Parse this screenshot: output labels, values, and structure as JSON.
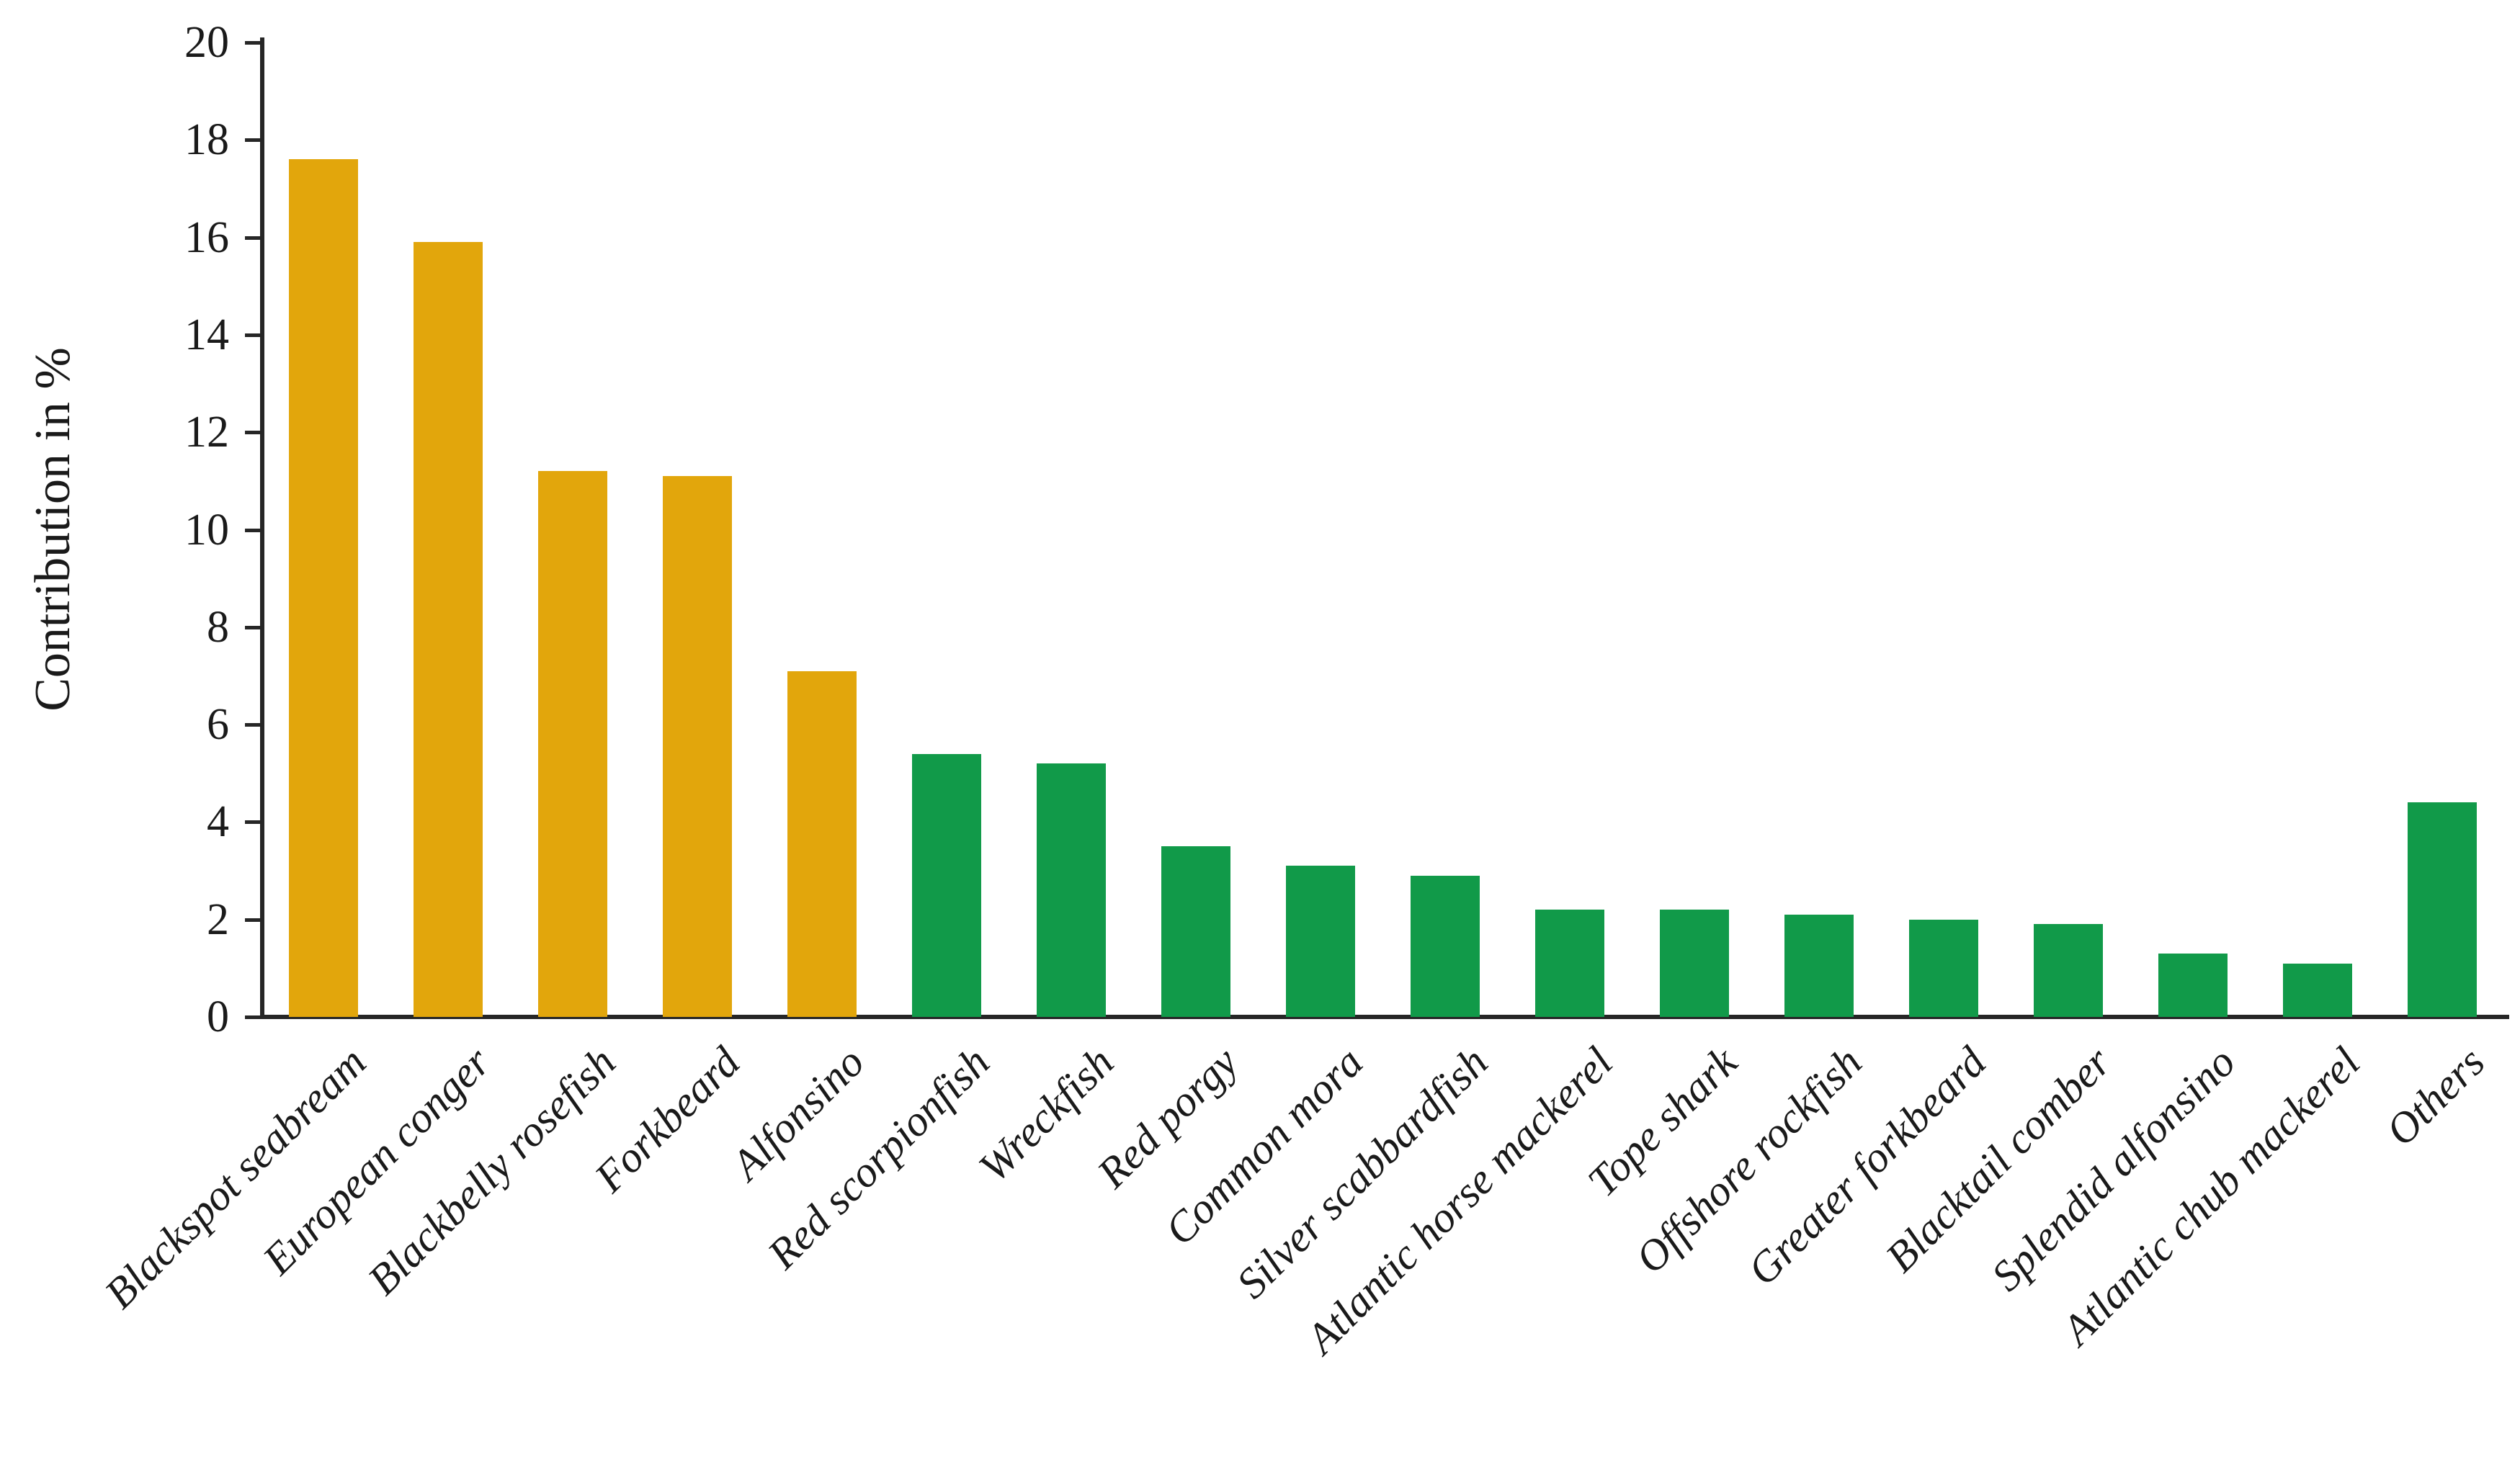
{
  "chart_data": {
    "type": "bar",
    "title": "",
    "ylabel": "Contribution in %",
    "xlabel": "",
    "ylim": [
      0,
      20
    ],
    "yticks": [
      0,
      2,
      4,
      6,
      8,
      10,
      12,
      14,
      16,
      18,
      20
    ],
    "grid": false,
    "legend": false,
    "categories": [
      "Blackspot seabream",
      "European conger",
      "Blackbelly rosefish",
      "Forkbeard",
      "Alfonsino",
      "Red scorpionfish",
      "Wreckfish",
      "Red porgy",
      "Common mora",
      "Silver scabbardfish",
      "Atlantic horse mackerel",
      "Tope shark",
      "Offshore rockfish",
      "Greater forkbeard",
      "Blacktail comber",
      "Splendid alfonsino",
      "Atlantic chub mackerel",
      "Others"
    ],
    "values": [
      17.6,
      15.9,
      11.2,
      11.1,
      7.1,
      5.4,
      5.2,
      3.5,
      3.1,
      2.9,
      2.2,
      2.2,
      2.1,
      2.0,
      1.9,
      1.3,
      1.1,
      4.4
    ],
    "colors": [
      "#E2A60C",
      "#E2A60C",
      "#E2A60C",
      "#E2A60C",
      "#E2A60C",
      "#119A49",
      "#119A49",
      "#119A49",
      "#119A49",
      "#119A49",
      "#119A49",
      "#119A49",
      "#119A49",
      "#119A49",
      "#119A49",
      "#119A49",
      "#119A49",
      "#119A49"
    ]
  }
}
